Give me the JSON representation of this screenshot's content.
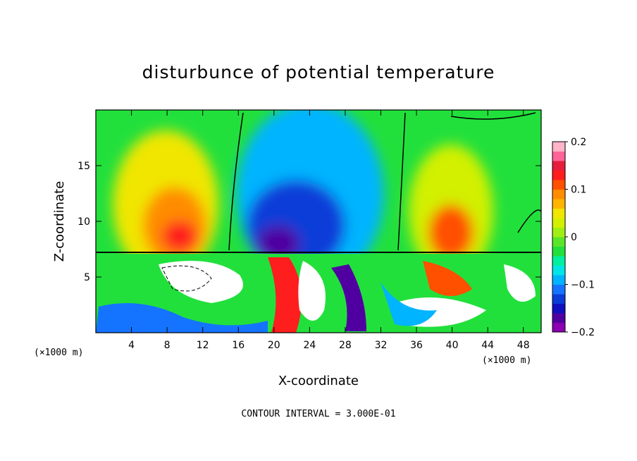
{
  "chart_data": {
    "type": "heatmap",
    "title": "disturbunce of potential temperature",
    "xlabel": "X-coordinate",
    "ylabel": "Z-coordinate",
    "x_unit": "(×1000 m)",
    "x_unit_right": "(×1000 m)",
    "xlim": [
      0,
      50
    ],
    "ylim": [
      0,
      20
    ],
    "x_ticks": [
      4,
      8,
      12,
      16,
      20,
      24,
      28,
      32,
      36,
      40,
      44,
      48
    ],
    "y_ticks": [
      5,
      10,
      15
    ],
    "colorbar": {
      "range": [
        -0.2,
        0.2
      ],
      "tick_values": [
        0.2,
        0.1,
        0,
        -0.1,
        -0.2
      ],
      "tick_labels": [
        "0.2",
        "0.1",
        "0",
        "−0.1",
        "−0.2"
      ],
      "colors": [
        "#8b00b0",
        "#5000a0",
        "#1010c0",
        "#0a3cd8",
        "#1474ff",
        "#00b4ff",
        "#00e6e6",
        "#00f0a0",
        "#22e03c",
        "#5ae628",
        "#a0ef14",
        "#d2f000",
        "#f0e600",
        "#ffb400",
        "#ff8c00",
        "#ff5000",
        "#ff1e1e",
        "#e61e3c",
        "#ff6496",
        "#ffb4c8"
      ]
    },
    "footer": "CONTOUR INTERVAL = 3.000E-01",
    "grid": false,
    "legend": "colorbar-right"
  }
}
